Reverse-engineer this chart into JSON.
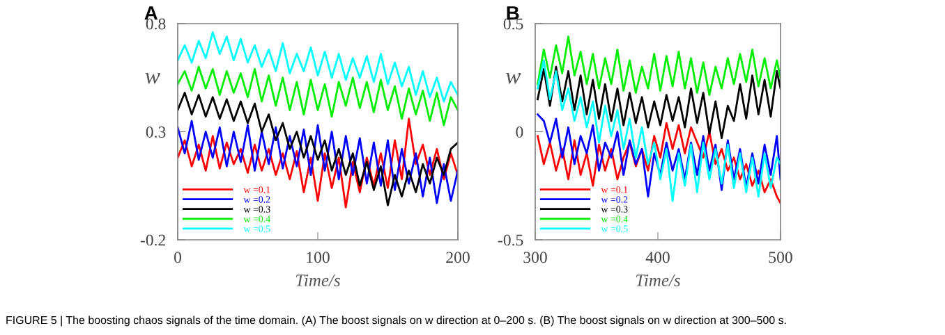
{
  "chart_data": [
    {
      "type": "line",
      "title": "A",
      "xlabel": "Time/s",
      "ylabel": "w",
      "xlim": [
        0,
        200
      ],
      "xticks": [
        0,
        100,
        200
      ],
      "ylim": [
        -0.2,
        0.8
      ],
      "yticks": [
        -0.2,
        0.3,
        0.8
      ],
      "grid": false,
      "legend": "bottom left",
      "x": [
        0,
        5,
        10,
        15,
        20,
        25,
        30,
        35,
        40,
        45,
        50,
        55,
        60,
        65,
        70,
        75,
        80,
        85,
        90,
        95,
        100,
        105,
        110,
        115,
        120,
        125,
        130,
        135,
        140,
        145,
        150,
        155,
        160,
        165,
        170,
        175,
        180,
        185,
        190,
        195,
        200
      ],
      "series": [
        {
          "name": "w =0.1",
          "color": "#ff0000",
          "values": [
            0.18,
            0.26,
            0.14,
            0.24,
            0.12,
            0.28,
            0.13,
            0.25,
            0.15,
            0.22,
            0.11,
            0.24,
            0.12,
            0.22,
            0.1,
            0.2,
            0.08,
            0.21,
            0.02,
            0.18,
            -0.02,
            0.2,
            0.04,
            0.18,
            -0.05,
            0.16,
            0.02,
            0.18,
            0.05,
            0.2,
            0.04,
            0.26,
            0.08,
            0.36,
            0.15,
            0.24,
            0.1,
            0.22,
            0.08,
            0.2,
            0.1
          ]
        },
        {
          "name": "w =0.2",
          "color": "#0000ff",
          "values": [
            0.32,
            0.2,
            0.35,
            0.17,
            0.3,
            0.18,
            0.32,
            0.14,
            0.3,
            0.16,
            0.33,
            0.12,
            0.3,
            0.15,
            0.32,
            0.13,
            0.28,
            0.14,
            0.31,
            0.1,
            0.33,
            0.12,
            0.3,
            0.08,
            0.28,
            0.1,
            0.27,
            0.06,
            0.25,
            0.05,
            0.26,
            0.03,
            0.22,
            0.06,
            0.2,
            0.0,
            0.18,
            -0.03,
            0.15,
            -0.02,
            0.12
          ]
        },
        {
          "name": "w =0.3",
          "color": "#000000",
          "values": [
            0.4,
            0.48,
            0.38,
            0.47,
            0.37,
            0.46,
            0.36,
            0.45,
            0.35,
            0.44,
            0.34,
            0.43,
            0.3,
            0.38,
            0.26,
            0.34,
            0.22,
            0.3,
            0.18,
            0.28,
            0.17,
            0.26,
            0.12,
            0.22,
            0.1,
            0.2,
            0.05,
            0.16,
            0.03,
            0.14,
            -0.04,
            0.1,
            0.0,
            0.12,
            0.02,
            0.15,
            0.06,
            0.18,
            0.1,
            0.22,
            0.25
          ]
        },
        {
          "name": "w =0.4",
          "color": "#00ee00",
          "values": [
            0.52,
            0.58,
            0.49,
            0.6,
            0.5,
            0.59,
            0.47,
            0.58,
            0.48,
            0.57,
            0.46,
            0.59,
            0.44,
            0.56,
            0.42,
            0.55,
            0.4,
            0.53,
            0.38,
            0.54,
            0.4,
            0.52,
            0.37,
            0.53,
            0.42,
            0.55,
            0.41,
            0.53,
            0.39,
            0.54,
            0.4,
            0.51,
            0.36,
            0.5,
            0.38,
            0.49,
            0.35,
            0.48,
            0.33,
            0.46,
            0.4
          ]
        },
        {
          "name": "w =0.5",
          "color": "#00ffff",
          "values": [
            0.63,
            0.7,
            0.62,
            0.72,
            0.64,
            0.76,
            0.66,
            0.74,
            0.63,
            0.73,
            0.62,
            0.7,
            0.6,
            0.68,
            0.58,
            0.71,
            0.57,
            0.66,
            0.58,
            0.69,
            0.56,
            0.67,
            0.55,
            0.66,
            0.54,
            0.64,
            0.55,
            0.65,
            0.53,
            0.66,
            0.52,
            0.62,
            0.51,
            0.6,
            0.47,
            0.58,
            0.46,
            0.55,
            0.44,
            0.53,
            0.47
          ]
        }
      ],
      "annotations": [
        "FIGURE 5 | The boosting chaos signals of the time domain. (A) The boost signals on w direction at 0–200 s. (B) The boost signals on w direction at 300–500 s."
      ]
    },
    {
      "type": "line",
      "title": "B",
      "xlabel": "Time/s",
      "ylabel": "w",
      "xlim": [
        300,
        500
      ],
      "xticks": [
        300,
        400,
        500
      ],
      "ylim": [
        -0.5,
        0.5
      ],
      "yticks": [
        -0.5,
        0,
        0.5
      ],
      "grid": false,
      "legend": "bottom left",
      "x": [
        302,
        307,
        312,
        317,
        322,
        327,
        332,
        337,
        342,
        347,
        352,
        357,
        362,
        367,
        372,
        377,
        382,
        387,
        392,
        397,
        402,
        407,
        412,
        417,
        422,
        427,
        432,
        437,
        442,
        447,
        452,
        457,
        462,
        467,
        472,
        477,
        482,
        487,
        492,
        497,
        500
      ],
      "series": [
        {
          "name": "w =0.1",
          "color": "#ff0000",
          "values": [
            -0.02,
            -0.15,
            -0.05,
            -0.18,
            -0.08,
            -0.22,
            -0.04,
            -0.2,
            -0.1,
            -0.25,
            -0.06,
            -0.18,
            -0.08,
            -0.22,
            -0.12,
            -0.05,
            -0.16,
            -0.08,
            -0.18,
            -0.02,
            -0.12,
            0.04,
            -0.08,
            0.03,
            -0.1,
            0.02,
            -0.05,
            -0.12,
            0.0,
            -0.15,
            -0.08,
            -0.18,
            -0.12,
            -0.22,
            -0.15,
            -0.25,
            -0.18,
            -0.28,
            -0.22,
            -0.3,
            -0.33
          ]
        },
        {
          "name": "w =0.2",
          "color": "#0000ff",
          "values": [
            0.08,
            0.05,
            -0.05,
            0.06,
            -0.12,
            0.02,
            -0.15,
            -0.02,
            -0.1,
            0.03,
            -0.18,
            -0.05,
            -0.12,
            0.0,
            -0.2,
            -0.04,
            -0.15,
            -0.08,
            -0.3,
            -0.1,
            -0.2,
            -0.05,
            -0.18,
            -0.08,
            -0.22,
            -0.05,
            -0.2,
            -0.02,
            -0.18,
            -0.06,
            -0.27,
            -0.04,
            -0.22,
            -0.08,
            -0.26,
            -0.1,
            -0.24,
            -0.06,
            -0.2,
            -0.02,
            -0.22
          ]
        },
        {
          "name": "w =0.3",
          "color": "#000000",
          "values": [
            0.15,
            0.29,
            0.12,
            0.3,
            0.14,
            0.28,
            0.1,
            0.26,
            0.08,
            0.24,
            0.06,
            0.22,
            0.05,
            0.2,
            0.03,
            0.18,
            0.04,
            0.16,
            0.02,
            0.14,
            0.03,
            0.17,
            0.05,
            0.16,
            0.02,
            0.2,
            0.04,
            0.18,
            -0.01,
            0.14,
            -0.03,
            0.12,
            0.05,
            0.22,
            0.06,
            0.26,
            0.08,
            0.24,
            0.07,
            0.28,
            0.2
          ]
        },
        {
          "name": "w =0.4",
          "color": "#00ee00",
          "values": [
            0.22,
            0.38,
            0.25,
            0.4,
            0.27,
            0.44,
            0.26,
            0.37,
            0.22,
            0.36,
            0.2,
            0.34,
            0.22,
            0.38,
            0.19,
            0.33,
            0.18,
            0.3,
            0.2,
            0.36,
            0.19,
            0.35,
            0.21,
            0.37,
            0.2,
            0.34,
            0.18,
            0.32,
            0.17,
            0.3,
            0.2,
            0.34,
            0.22,
            0.36,
            0.23,
            0.38,
            0.21,
            0.34,
            0.2,
            0.33,
            0.25
          ]
        },
        {
          "name": "w =0.5",
          "color": "#00ffff",
          "values": [
            0.2,
            0.33,
            0.15,
            0.28,
            0.1,
            0.2,
            0.05,
            0.16,
            0.02,
            0.14,
            -0.05,
            0.12,
            -0.02,
            0.1,
            -0.08,
            0.06,
            -0.12,
            0.02,
            -0.15,
            -0.05,
            -0.22,
            -0.08,
            -0.32,
            -0.1,
            -0.25,
            -0.06,
            -0.28,
            -0.05,
            -0.22,
            -0.08,
            -0.24,
            -0.06,
            -0.26,
            -0.1,
            -0.28,
            -0.12,
            -0.3,
            -0.1,
            -0.26,
            -0.12,
            -0.15
          ]
        }
      ]
    }
  ]
}
